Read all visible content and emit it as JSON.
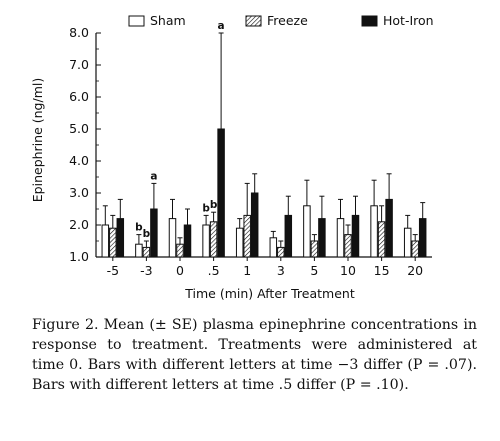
{
  "chart_data": {
    "type": "bar",
    "ylabel": "Epinephrine (ng/ml)",
    "xlabel": "Time (min) After Treatment",
    "ylim": [
      1.0,
      8.0
    ],
    "yticks": [
      "1.0",
      "2.0",
      "3.0",
      "4.0",
      "5.0",
      "6.0",
      "7.0",
      "8.0"
    ],
    "categories": [
      "-5",
      "-3",
      "0",
      ".5",
      "1",
      "3",
      "5",
      "10",
      "15",
      "20"
    ],
    "legend_position": "top",
    "series": [
      {
        "name": "Sham",
        "pattern": "open",
        "values": [
          2.0,
          1.4,
          2.2,
          2.0,
          1.9,
          1.6,
          2.6,
          2.2,
          2.6,
          1.9
        ],
        "errors": [
          0.6,
          0.3,
          0.6,
          0.3,
          0.3,
          0.2,
          0.8,
          0.6,
          0.8,
          0.4
        ],
        "letters": [
          null,
          "b",
          null,
          "b",
          null,
          null,
          null,
          null,
          null,
          null
        ]
      },
      {
        "name": "Freeze",
        "pattern": "hatched",
        "values": [
          1.9,
          1.3,
          1.4,
          2.1,
          2.3,
          1.3,
          1.5,
          1.7,
          2.1,
          1.5
        ],
        "errors": [
          0.4,
          0.2,
          0.2,
          0.3,
          1.0,
          0.2,
          0.2,
          0.3,
          0.5,
          0.2
        ],
        "letters": [
          null,
          "b",
          null,
          "b",
          null,
          null,
          null,
          null,
          null,
          null
        ]
      },
      {
        "name": "Hot-Iron",
        "pattern": "solid",
        "values": [
          2.2,
          2.5,
          2.0,
          5.0,
          3.0,
          2.3,
          2.2,
          2.3,
          2.8,
          2.2
        ],
        "errors": [
          0.6,
          0.8,
          0.5,
          3.0,
          0.6,
          0.6,
          0.7,
          0.6,
          0.8,
          0.5
        ],
        "letters": [
          null,
          "a",
          null,
          "a",
          null,
          null,
          null,
          null,
          null,
          null
        ]
      }
    ]
  },
  "caption": {
    "text": "Figure 2. Mean (± SE) plasma epinephrine concentrations in response to treatment. Treatments were administered at time 0. Bars with different letters at time −3 differ (P = .07). Bars with different letters at time .5 differ (P = .10)."
  }
}
